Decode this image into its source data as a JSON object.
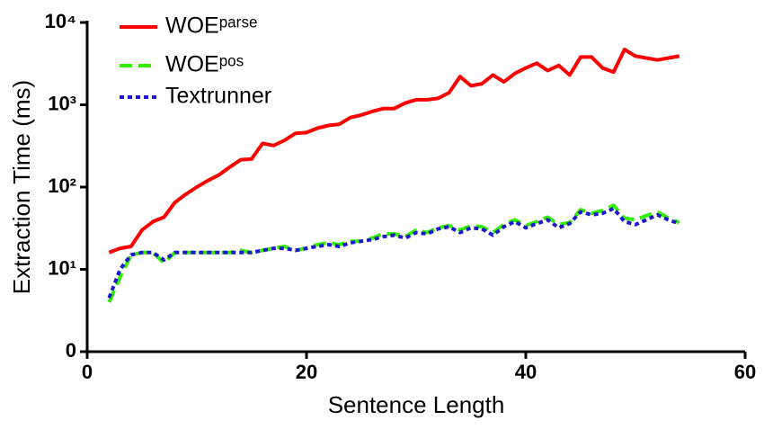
{
  "chart_data": {
    "type": "line",
    "xlabel": "Sentence Length",
    "ylabel": "Extraction Time (ms)",
    "yscale": "log",
    "x": [
      2,
      3,
      4,
      5,
      6,
      7,
      8,
      9,
      10,
      11,
      12,
      13,
      14,
      15,
      16,
      17,
      18,
      19,
      20,
      21,
      22,
      23,
      24,
      25,
      26,
      27,
      28,
      29,
      30,
      31,
      32,
      33,
      34,
      35,
      36,
      37,
      38,
      39,
      40,
      41,
      42,
      43,
      44,
      45,
      46,
      47,
      48,
      49,
      50,
      51,
      52,
      53,
      54
    ],
    "series": [
      {
        "name": "WOEᵖᵃʳˢᵉ",
        "color": "#ff0000",
        "dash": "solid",
        "values": [
          16,
          18,
          19,
          30,
          38,
          43,
          65,
          82,
          100,
          120,
          140,
          175,
          215,
          220,
          340,
          320,
          370,
          450,
          460,
          520,
          560,
          580,
          700,
          750,
          830,
          900,
          900,
          1050,
          1150,
          1150,
          1200,
          1400,
          2200,
          1700,
          1800,
          2300,
          1900,
          2400,
          2800,
          3200,
          2600,
          3000,
          2300,
          3800,
          3800,
          2800,
          2500,
          4700,
          3900,
          3700,
          3500,
          3700,
          3900
        ]
      },
      {
        "name": "WOEᵖᵒˢ",
        "color": "#33ee00",
        "dash": "dashed",
        "values": [
          4,
          8,
          15,
          16,
          16,
          12,
          16,
          16,
          16,
          16,
          16,
          16,
          17,
          16,
          17,
          18,
          19,
          17,
          18,
          20,
          21,
          20,
          22,
          22,
          24,
          27,
          27,
          25,
          30,
          28,
          32,
          34,
          30,
          34,
          33,
          28,
          35,
          40,
          34,
          38,
          43,
          35,
          37,
          53,
          48,
          52,
          60,
          42,
          40,
          45,
          50,
          42,
          37
        ]
      },
      {
        "name": "Textrunner",
        "color": "#1a1acc",
        "dash": "dotted",
        "values": [
          4.5,
          10,
          15,
          16,
          16,
          13,
          16,
          16,
          16,
          16,
          16,
          16,
          16,
          16,
          17,
          18,
          18,
          17,
          18,
          19,
          20,
          19,
          21,
          22,
          23,
          25,
          26,
          24,
          28,
          27,
          31,
          33,
          28,
          32,
          31,
          26,
          33,
          38,
          32,
          36,
          40,
          32,
          36,
          50,
          46,
          48,
          55,
          38,
          35,
          40,
          46,
          40,
          36
        ]
      }
    ],
    "xlim": [
      0,
      60
    ],
    "xticks": [
      0,
      20,
      40,
      60
    ],
    "ylim": [
      1,
      10000
    ],
    "yticks": [
      {
        "value": 1,
        "label": "0"
      },
      {
        "value": 10,
        "label": "10¹"
      },
      {
        "value": 100,
        "label": "10²"
      },
      {
        "value": 1000,
        "label": "10³"
      },
      {
        "value": 10000,
        "label": "10⁴"
      }
    ],
    "legend": "upper-left"
  }
}
